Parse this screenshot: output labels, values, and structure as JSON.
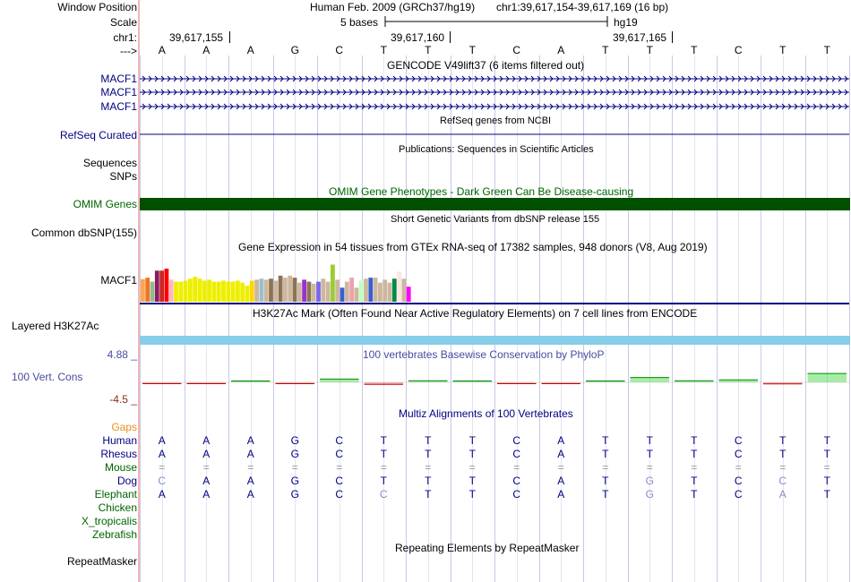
{
  "header": {
    "window_position_label": "Window Position",
    "scale_label": "Scale",
    "chr_label": "chr1:",
    "strand_label": "--->",
    "assembly_title": "Human Feb. 2009 (GRCh37/hg19)",
    "position_text": "chr1:39,617,154-39,617,169 (16 bp)",
    "scale_text": "5 bases",
    "assembly": "hg19",
    "ticks": [
      "39,617,155",
      "39,617,160",
      "39,617,165"
    ]
  },
  "bases": [
    "A",
    "A",
    "A",
    "G",
    "C",
    "T",
    "T",
    "T",
    "C",
    "A",
    "T",
    "T",
    "T",
    "C",
    "T",
    "T"
  ],
  "gencode": {
    "title": "GENCODE V49lift37 (6 items filtered out)",
    "genes": [
      "MACF1",
      "MACF1",
      "MACF1"
    ]
  },
  "refseq": {
    "title": "RefSeq genes from NCBI",
    "label": "RefSeq Curated"
  },
  "publications": {
    "title": "Publications: Sequences in Scientific Articles",
    "label1": "Sequences",
    "label2": "SNPs"
  },
  "omim": {
    "title": "OMIM Gene Phenotypes - Dark Green Can Be Disease-causing",
    "label": "OMIM Genes",
    "color": "#005000"
  },
  "dbsnp": {
    "title": "Short Genetic Variants from dbSNP release 155",
    "label": "Common dbSNP(155)"
  },
  "gtex": {
    "title": "Gene Expression in 54 tissues from GTEx RNA-seq of 17382 samples, 948 donors (V8, Aug 2019)",
    "label": "MACF1",
    "bars": [
      {
        "c": "#ffa54f",
        "v": 0.45
      },
      {
        "c": "#ee7621",
        "v": 0.48
      },
      {
        "c": "#8fbc8f",
        "v": 0.4
      },
      {
        "c": "#8b1c62",
        "v": 0.62
      },
      {
        "c": "#cd2626",
        "v": 0.62
      },
      {
        "c": "#ff0000",
        "v": 0.66
      },
      {
        "c": "#ffb6c1",
        "v": 0.44
      },
      {
        "c": "#eeee00",
        "v": 0.4
      },
      {
        "c": "#eeee00",
        "v": 0.4
      },
      {
        "c": "#eeee00",
        "v": 0.42
      },
      {
        "c": "#eeee00",
        "v": 0.46
      },
      {
        "c": "#eeee00",
        "v": 0.5
      },
      {
        "c": "#eeee00",
        "v": 0.46
      },
      {
        "c": "#eeee00",
        "v": 0.42
      },
      {
        "c": "#eeee00",
        "v": 0.44
      },
      {
        "c": "#eeee00",
        "v": 0.4
      },
      {
        "c": "#eeee00",
        "v": 0.4
      },
      {
        "c": "#eeee00",
        "v": 0.42
      },
      {
        "c": "#eeee00",
        "v": 0.4
      },
      {
        "c": "#eeee00",
        "v": 0.4
      },
      {
        "c": "#eeee00",
        "v": 0.42
      },
      {
        "c": "#eeee00",
        "v": 0.38
      },
      {
        "c": "#eeee00",
        "v": 0.32
      },
      {
        "c": "#ffd700",
        "v": 0.42
      },
      {
        "c": "#cdb79e",
        "v": 0.44
      },
      {
        "c": "#9ac0cd",
        "v": 0.46
      },
      {
        "c": "#cdb79e",
        "v": 0.44
      },
      {
        "c": "#8b7355",
        "v": 0.46
      },
      {
        "c": "#cdb79e",
        "v": 0.42
      },
      {
        "c": "#8b7355",
        "v": 0.52
      },
      {
        "c": "#cdb79e",
        "v": 0.48
      },
      {
        "c": "#cdb79e",
        "v": 0.52
      },
      {
        "c": "#8b7355",
        "v": 0.48
      },
      {
        "c": "#cdb79e",
        "v": 0.38
      },
      {
        "c": "#9932cc",
        "v": 0.44
      },
      {
        "c": "#8b7355",
        "v": 0.4
      },
      {
        "c": "#cdb79e",
        "v": 0.36
      },
      {
        "c": "#7a67ee",
        "v": 0.4
      },
      {
        "c": "#cdb79e",
        "v": 0.46
      },
      {
        "c": "#cdb79e",
        "v": 0.4
      },
      {
        "c": "#9acd32",
        "v": 0.74
      },
      {
        "c": "#cdb79e",
        "v": 0.44
      },
      {
        "c": "#3a5fcd",
        "v": 0.28
      },
      {
        "c": "#cdb79e",
        "v": 0.4
      },
      {
        "c": "#eea2ad",
        "v": 0.48
      },
      {
        "c": "#cdb79e",
        "v": 0.28
      },
      {
        "c": "#c1ffc1",
        "v": 0.42
      },
      {
        "c": "#cdb79e",
        "v": 0.46
      },
      {
        "c": "#3a5fcd",
        "v": 0.48
      },
      {
        "c": "#cdb79e",
        "v": 0.48
      },
      {
        "c": "#cdb79e",
        "v": 0.38
      },
      {
        "c": "#cdb79e",
        "v": 0.44
      },
      {
        "c": "#cdb79e",
        "v": 0.38
      },
      {
        "c": "#008b45",
        "v": 0.46
      },
      {
        "c": "#ffe4e1",
        "v": 0.6
      },
      {
        "c": "#cdb79e",
        "v": 0.46
      },
      {
        "c": "#ff00ff",
        "v": 0.3
      }
    ]
  },
  "h3k27ac": {
    "title": "H3K27Ac Mark (Often Found Near Active Regulatory Elements) on 7 cell lines from ENCODE",
    "label": "Layered H3K27Ac",
    "color": "#87ceeb"
  },
  "phylop": {
    "title": "100 vertebrates Basewise Conservation by PhyloP",
    "label": "100 Vert. Cons",
    "max": "4.88",
    "min": "-4.5",
    "scores": [
      -0.15,
      -0.1,
      0.05,
      -0.12,
      0.4,
      -0.25,
      0.2,
      0.1,
      -0.1,
      -0.15,
      0.05,
      0.6,
      0.2,
      0.3,
      -0.2,
      1.1
    ]
  },
  "multiz": {
    "title": "Multiz Alignments of 100 Vertebrates",
    "gaps_label": "Gaps",
    "species": [
      {
        "name": "Human",
        "seq": [
          "A",
          "A",
          "A",
          "G",
          "C",
          "T",
          "T",
          "T",
          "C",
          "A",
          "T",
          "T",
          "T",
          "C",
          "T",
          "T"
        ]
      },
      {
        "name": "Rhesus",
        "seq": [
          "A",
          "A",
          "A",
          "G",
          "C",
          "T",
          "T",
          "T",
          "C",
          "A",
          "T",
          "T",
          "T",
          "C",
          "T",
          "T"
        ]
      },
      {
        "name": "Mouse",
        "seq": [
          "=",
          "=",
          "=",
          "=",
          "=",
          "=",
          "=",
          "=",
          "=",
          "=",
          "=",
          "=",
          "=",
          "=",
          "=",
          "="
        ]
      },
      {
        "name": "Dog",
        "seq": [
          "C",
          "A",
          "A",
          "G",
          "C",
          "T",
          "T",
          "T",
          "C",
          "A",
          "T",
          "G",
          "T",
          "C",
          "C",
          "T"
        ]
      },
      {
        "name": "Elephant",
        "seq": [
          "A",
          "A",
          "A",
          "G",
          "C",
          "C",
          "T",
          "T",
          "C",
          "A",
          "T",
          "G",
          "T",
          "C",
          "A",
          "T"
        ]
      },
      {
        "name": "Chicken",
        "seq": []
      },
      {
        "name": "X_tropicalis",
        "seq": []
      },
      {
        "name": "Zebrafish",
        "seq": []
      }
    ]
  },
  "repeatmasker": {
    "title": "Repeating Elements by RepeatMasker",
    "label": "RepeatMasker"
  },
  "colors": {
    "navy": "#000080",
    "gridline": "#c8c8e6",
    "sidebar_line": "#e07070"
  }
}
